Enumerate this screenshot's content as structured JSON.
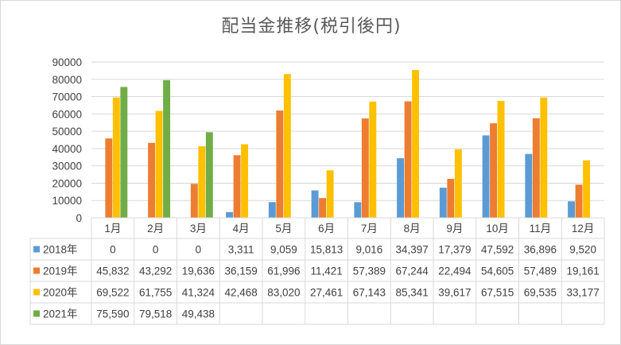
{
  "chart_data": {
    "type": "bar",
    "title": "配当金推移(税引後円)",
    "categories": [
      "1月",
      "2月",
      "3月",
      "4月",
      "5月",
      "6月",
      "7月",
      "8月",
      "9月",
      "10月",
      "11月",
      "12月"
    ],
    "ylim": [
      0,
      90000
    ],
    "yticks": [
      0,
      10000,
      20000,
      30000,
      40000,
      50000,
      60000,
      70000,
      80000,
      90000
    ],
    "ytick_labels": [
      "0",
      "10000",
      "20000",
      "30000",
      "40000",
      "50000",
      "60000",
      "70000",
      "80000",
      "90000"
    ],
    "grid": true,
    "legend": "data-table",
    "series": [
      {
        "name": "2018年",
        "color": "#5b9bd5",
        "values": [
          0,
          0,
          0,
          3311,
          9059,
          15813,
          9016,
          34397,
          17379,
          47592,
          36896,
          9520
        ],
        "labels": [
          "0",
          "0",
          "0",
          "3,311",
          "9,059",
          "15,813",
          "9,016",
          "34,397",
          "17,379",
          "47,592",
          "36,896",
          "9,520"
        ]
      },
      {
        "name": "2019年",
        "color": "#ed7d31",
        "values": [
          45832,
          43292,
          19636,
          36159,
          61996,
          11421,
          57389,
          67244,
          22494,
          54605,
          57489,
          19161
        ],
        "labels": [
          "45,832",
          "43,292",
          "19,636",
          "36,159",
          "61,996",
          "11,421",
          "57,389",
          "67,244",
          "22,494",
          "54,605",
          "57,489",
          "19,161"
        ]
      },
      {
        "name": "2020年",
        "color": "#ffc000",
        "values": [
          69522,
          61755,
          41324,
          42468,
          83020,
          27461,
          67143,
          85341,
          39617,
          67515,
          69535,
          33177
        ],
        "labels": [
          "69,522",
          "61,755",
          "41,324",
          "42,468",
          "83,020",
          "27,461",
          "67,143",
          "85,341",
          "39,617",
          "67,515",
          "69,535",
          "33,177"
        ]
      },
      {
        "name": "2021年",
        "color": "#70ad47",
        "values": [
          75590,
          79518,
          49438,
          null,
          null,
          null,
          null,
          null,
          null,
          null,
          null,
          null
        ],
        "labels": [
          "75,590",
          "79,518",
          "49,438",
          "",
          "",
          "",
          "",
          "",
          "",
          "",
          "",
          ""
        ]
      }
    ]
  }
}
